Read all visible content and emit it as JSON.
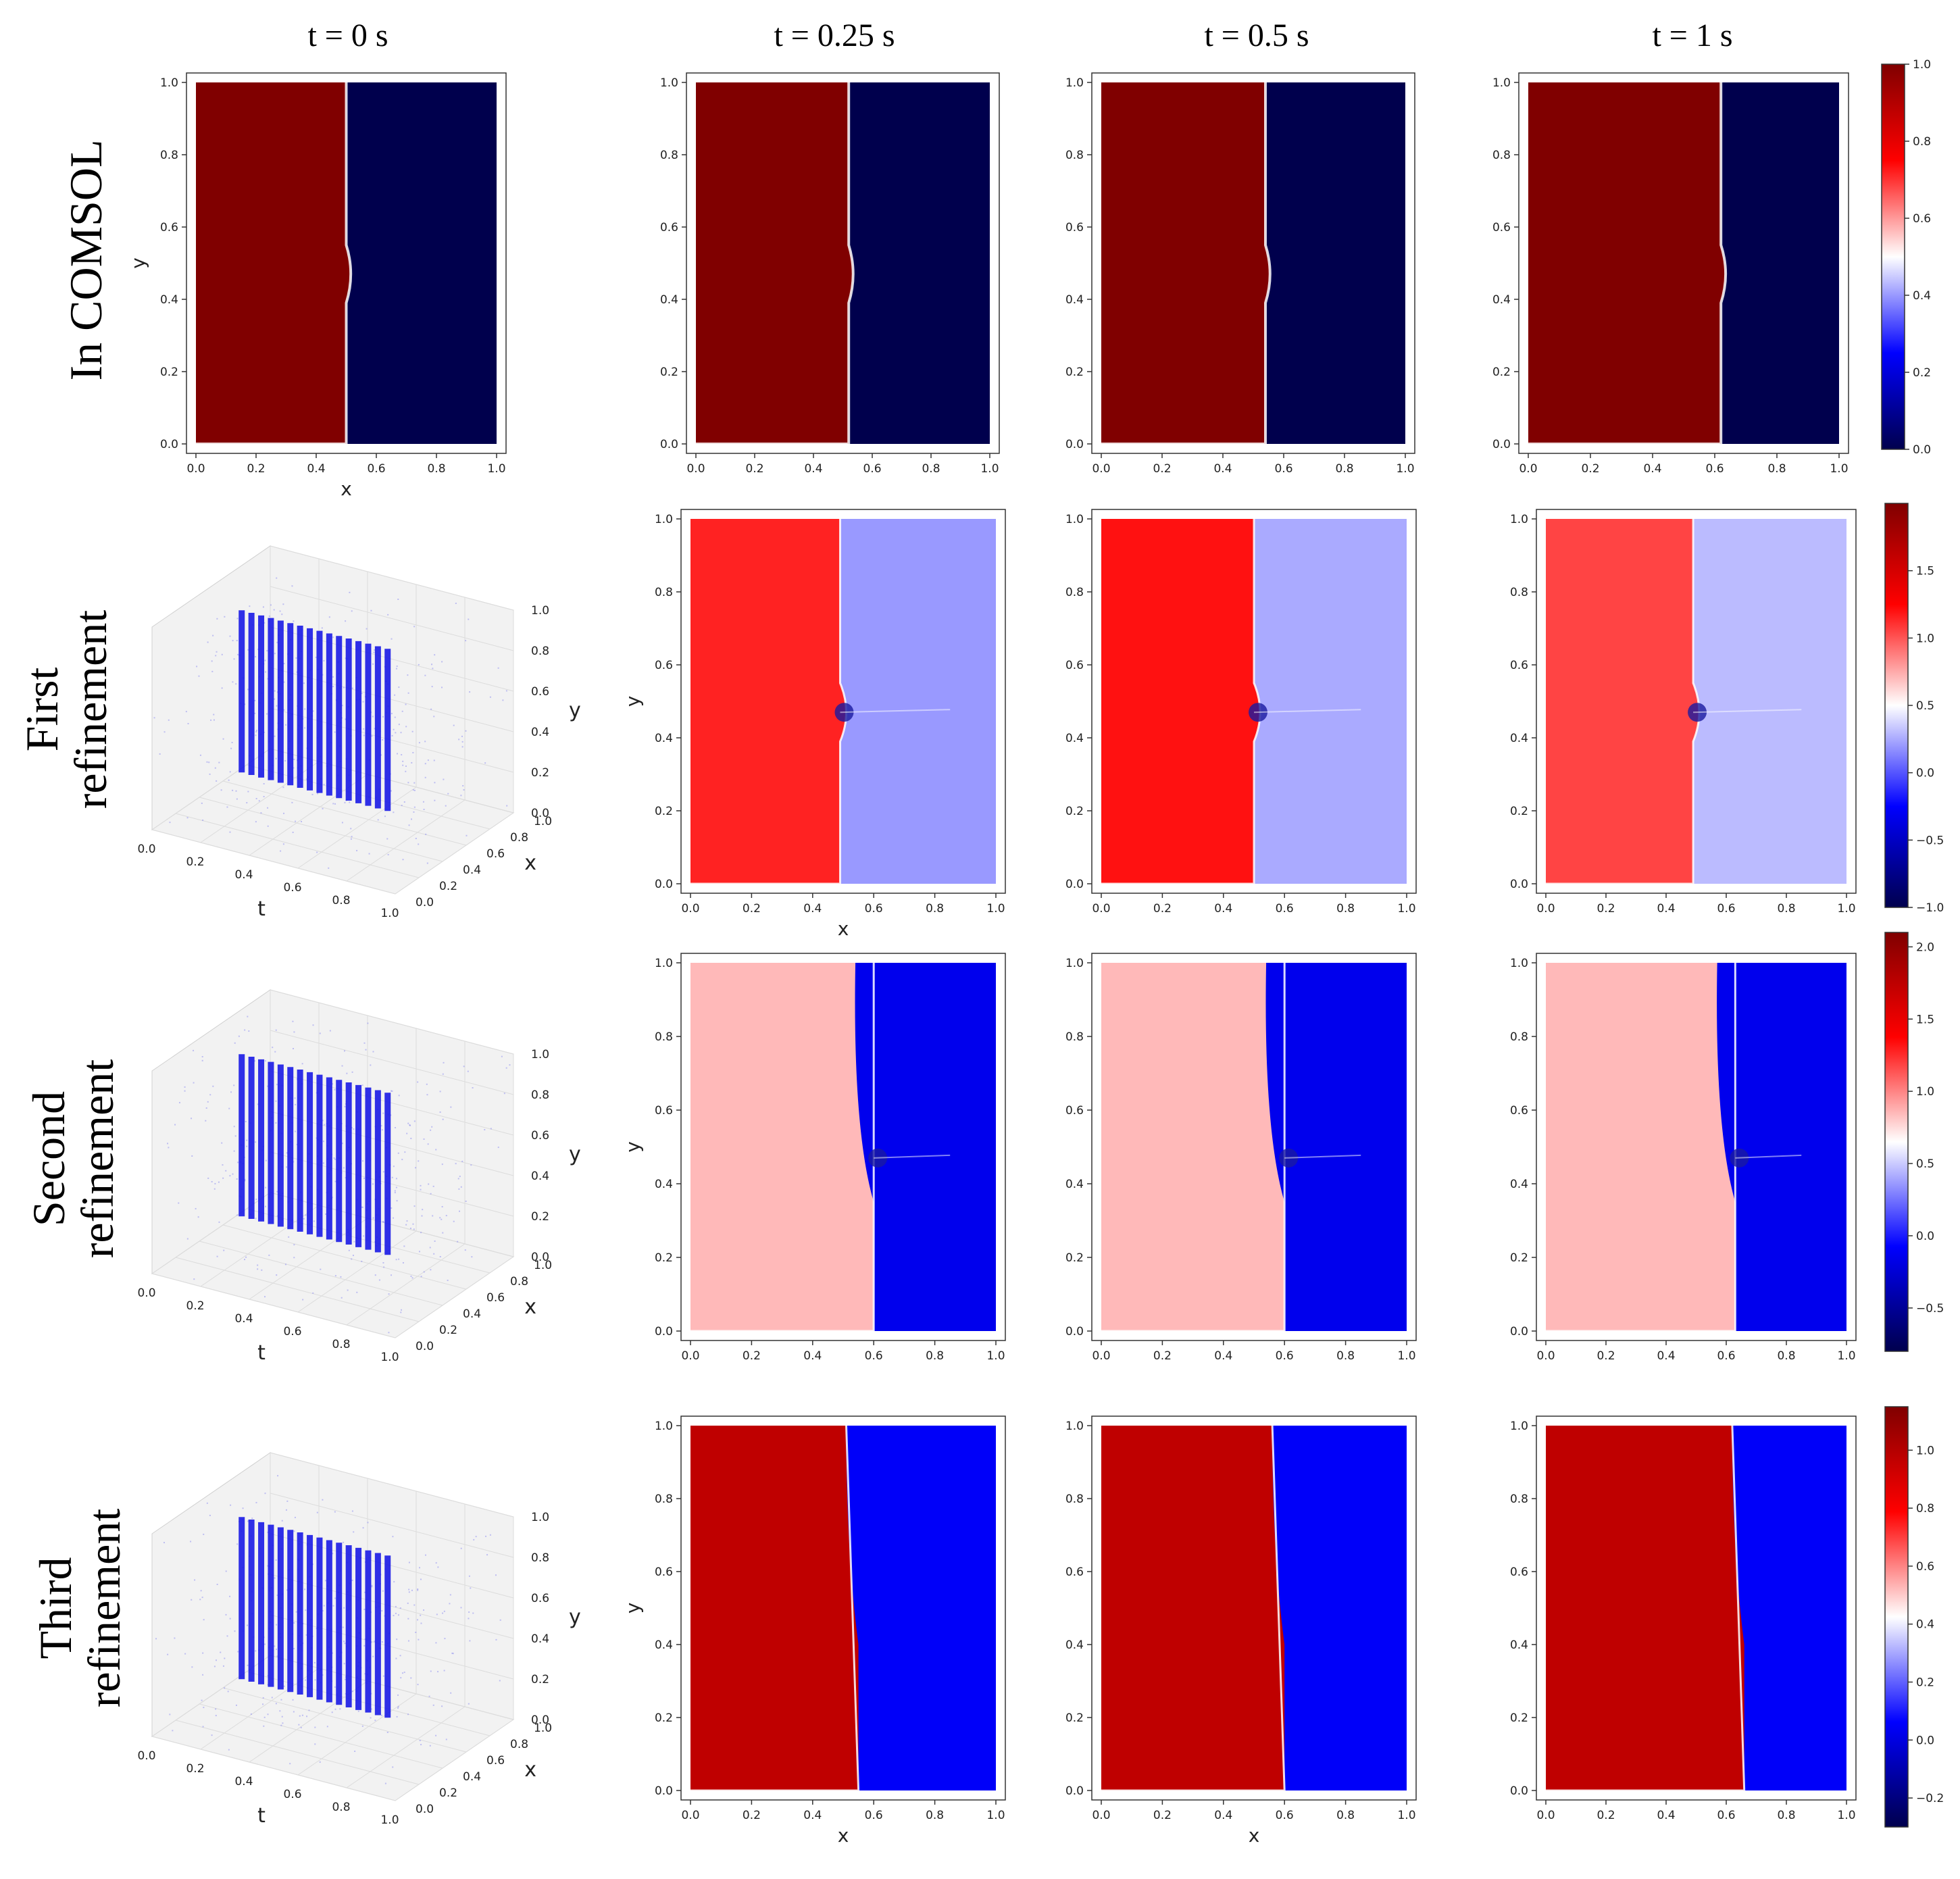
{
  "figure": {
    "column_titles": [
      "t = 0 s",
      "t = 0.25 s",
      "t = 0.5 s",
      "t = 1 s"
    ],
    "row_labels": [
      [
        "In COMSOL"
      ],
      [
        "First",
        "refinement"
      ],
      [
        "Second",
        "refinement"
      ],
      [
        "Third",
        "refinement"
      ]
    ]
  },
  "chart_data": {
    "type": "heatmap",
    "xlabel": "x",
    "ylabel": "y",
    "xlim": [
      0,
      1
    ],
    "ylim": [
      0,
      1
    ],
    "ticks": [
      0.0,
      0.2,
      0.4,
      0.6,
      0.8,
      1.0
    ],
    "colormap": "seismic",
    "rows": [
      {
        "name": "In COMSOL",
        "colorbar": {
          "min": 0.0,
          "max": 1.0,
          "ticks": [
            0.0,
            0.2,
            0.4,
            0.6,
            0.8,
            1.0
          ]
        },
        "left_value": 1.0,
        "right_value": 0.0,
        "interface_sharpness": "sharp",
        "panels": [
          {
            "time": "t = 0 s",
            "interface_x": 0.5,
            "bump": 0.03
          },
          {
            "time": "t = 0.25 s",
            "interface_x": 0.52,
            "bump": 0.03
          },
          {
            "time": "t = 0.5 s",
            "interface_x": 0.54,
            "bump": 0.03
          },
          {
            "time": "t = 1 s",
            "interface_x": 0.62,
            "bump": 0.03
          }
        ]
      },
      {
        "name": "First refinement",
        "colorbar": {
          "min": -1.0,
          "max": 2.0,
          "ticks": [
            -1.0,
            -0.5,
            0.0,
            0.5,
            1.0,
            1.5
          ]
        },
        "collocation_3d": {
          "t_ticks": [
            0.0,
            0.2,
            0.4,
            0.6,
            0.8,
            1.0
          ],
          "x_ticks": [
            0.0,
            0.2,
            0.4,
            0.6,
            0.8,
            1.0
          ],
          "y_ticks": [
            0.0,
            0.2,
            0.4,
            0.6,
            0.8,
            1.0
          ],
          "labels": [
            "t",
            "x",
            "y"
          ]
        },
        "panels": [
          {
            "time": "t = 0.25 s",
            "interface_x": 0.49,
            "left_value": 1.15,
            "right_value": 0.2
          },
          {
            "time": "t = 0.5 s",
            "interface_x": 0.5,
            "left_value": 1.2,
            "right_value": 0.25
          },
          {
            "time": "t = 1 s",
            "interface_x": 0.49,
            "left_value": 1.05,
            "right_value": 0.3
          }
        ]
      },
      {
        "name": "Second refinement",
        "colorbar": {
          "min": -0.8,
          "max": 2.1,
          "ticks": [
            -0.5,
            0.0,
            0.5,
            1.0,
            1.5,
            2.0
          ]
        },
        "collocation_3d": {
          "t_ticks": [
            0.0,
            0.2,
            0.4,
            0.6,
            0.8,
            1.0
          ],
          "x_ticks": [
            0.0,
            0.2,
            0.4,
            0.6,
            0.8,
            1.0
          ],
          "y_ticks": [
            0.0,
            0.2,
            0.4,
            0.6,
            0.8,
            1.0
          ],
          "labels": [
            "t",
            "x",
            "y"
          ]
        },
        "panels": [
          {
            "time": "t = 0.25 s",
            "interface_x": 0.6,
            "left_value": 0.85,
            "right_value": -0.15
          },
          {
            "time": "t = 0.5 s",
            "interface_x": 0.6,
            "left_value": 0.85,
            "right_value": -0.15
          },
          {
            "time": "t = 1 s",
            "interface_x": 0.63,
            "left_value": 0.85,
            "right_value": -0.15
          }
        ]
      },
      {
        "name": "Third refinement",
        "colorbar": {
          "min": -0.3,
          "max": 1.15,
          "ticks": [
            -0.2,
            0.0,
            0.2,
            0.4,
            0.6,
            0.8,
            1.0
          ]
        },
        "collocation_3d": {
          "t_ticks": [
            0.0,
            0.2,
            0.4,
            0.6,
            0.8,
            1.0
          ],
          "x_ticks": [
            0.0,
            0.2,
            0.4,
            0.6,
            0.8,
            1.0
          ],
          "y_ticks": [
            0.0,
            0.2,
            0.4,
            0.6,
            0.8,
            1.0
          ],
          "labels": [
            "t",
            "x",
            "y"
          ]
        },
        "panels": [
          {
            "time": "t = 0.25 s",
            "interface_x": 0.51,
            "left_value": 0.97,
            "right_value": 0.05
          },
          {
            "time": "t = 0.5 s",
            "interface_x": 0.56,
            "left_value": 0.97,
            "right_value": 0.05
          },
          {
            "time": "t = 1 s",
            "interface_x": 0.62,
            "left_value": 0.97,
            "right_value": 0.05
          }
        ]
      }
    ]
  }
}
